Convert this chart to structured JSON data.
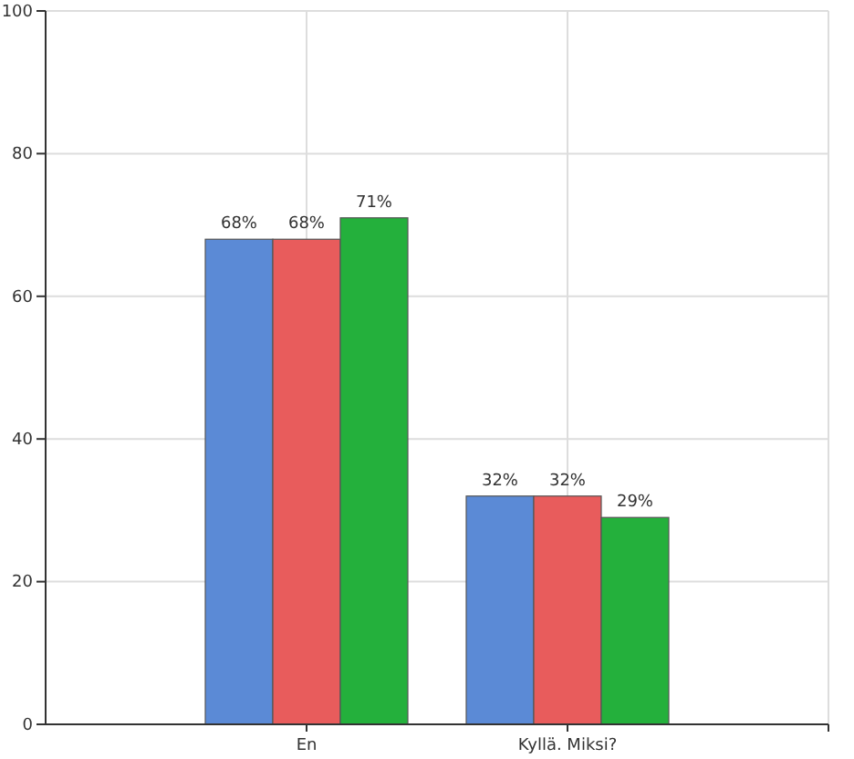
{
  "chart_data": {
    "type": "bar",
    "categories": [
      "En",
      "Kyllä. Miksi?"
    ],
    "series": [
      {
        "color": "#5b8ad6",
        "values": [
          68,
          32
        ],
        "value_labels": [
          "68%",
          "32%"
        ]
      },
      {
        "color": "#e85c5c",
        "values": [
          68,
          32
        ],
        "value_labels": [
          "68%",
          "32%"
        ]
      },
      {
        "color": "#24b03c",
        "values": [
          71,
          29
        ],
        "value_labels": [
          "71%",
          "29%"
        ]
      }
    ],
    "ylim": [
      0,
      100
    ],
    "yticks": [
      0,
      20,
      40,
      60,
      80,
      100
    ],
    "grid": true
  }
}
